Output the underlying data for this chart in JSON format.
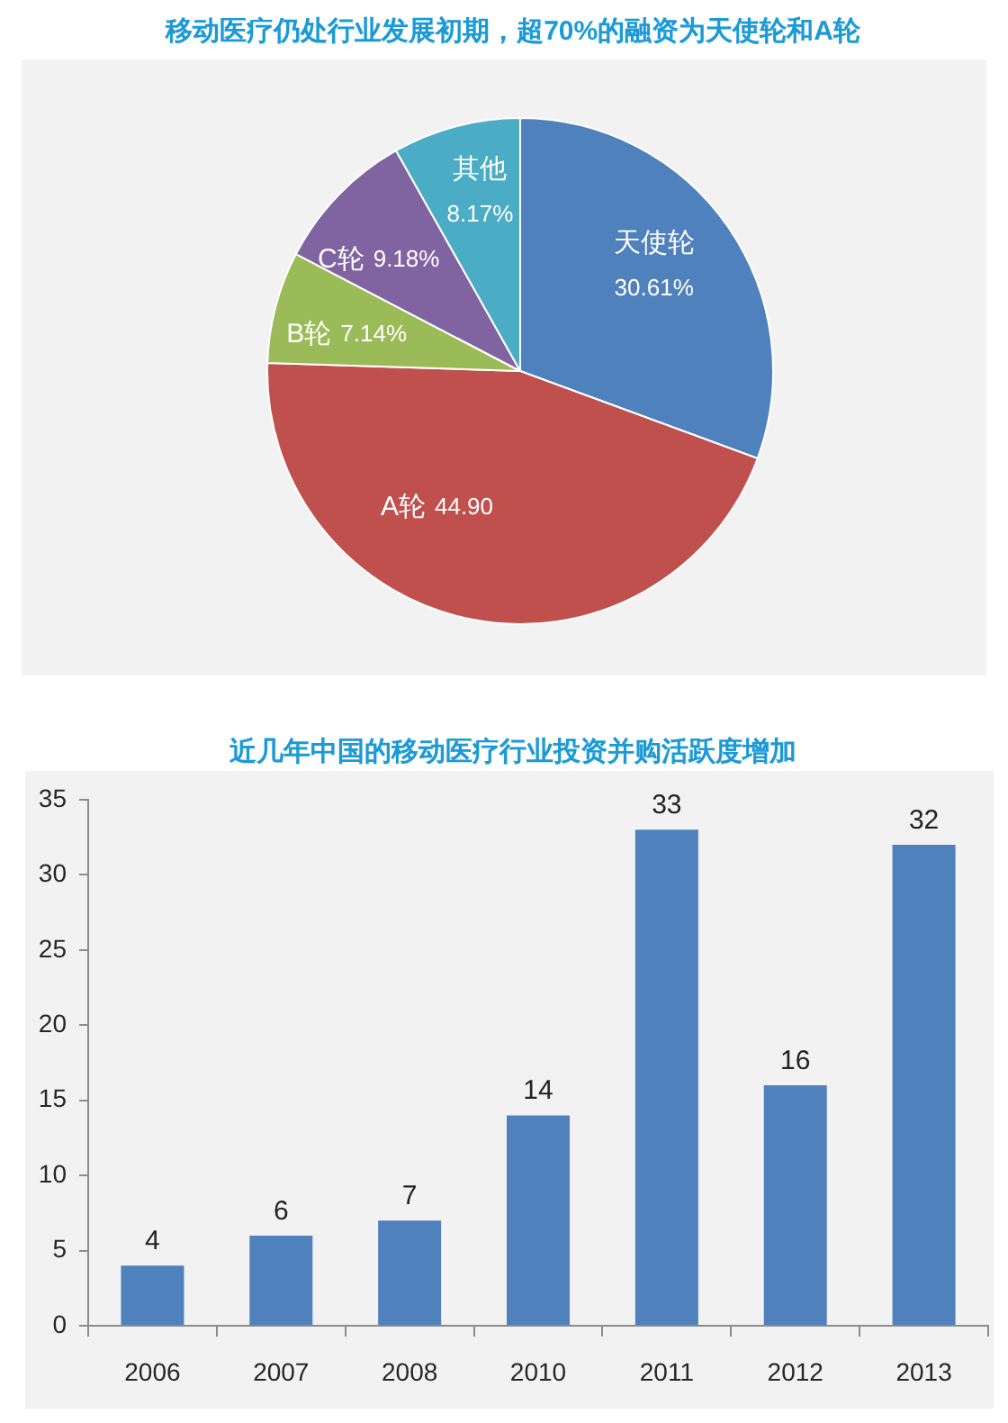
{
  "chart_data": [
    {
      "type": "pie",
      "title": "移动医疗仍处行业发展初期，超70%的融资为天使轮和A轮",
      "categories": [
        "天使轮",
        "A轮",
        "B轮",
        "C轮",
        "其他"
      ],
      "values": [
        30.61,
        44.9,
        7.14,
        9.18,
        8.17
      ],
      "colors": [
        "#4f81bd",
        "#c0504d",
        "#9bbb59",
        "#8064a2",
        "#4bacc6"
      ],
      "value_labels": [
        "30.61%",
        "44.90",
        "7.14%",
        "9.18%",
        "8.17%"
      ]
    },
    {
      "type": "bar",
      "title": "近几年中国的移动医疗行业投资并购活跃度增加",
      "categories": [
        "2006",
        "2007",
        "2008",
        "2010",
        "2011",
        "2012",
        "2013"
      ],
      "values": [
        4,
        6,
        7,
        14,
        33,
        16,
        32
      ],
      "color": "#4f81bd",
      "ylim": [
        0,
        35
      ],
      "yticks": [
        0,
        5,
        10,
        15,
        20,
        25,
        30,
        35
      ],
      "data_labels": true
    }
  ]
}
